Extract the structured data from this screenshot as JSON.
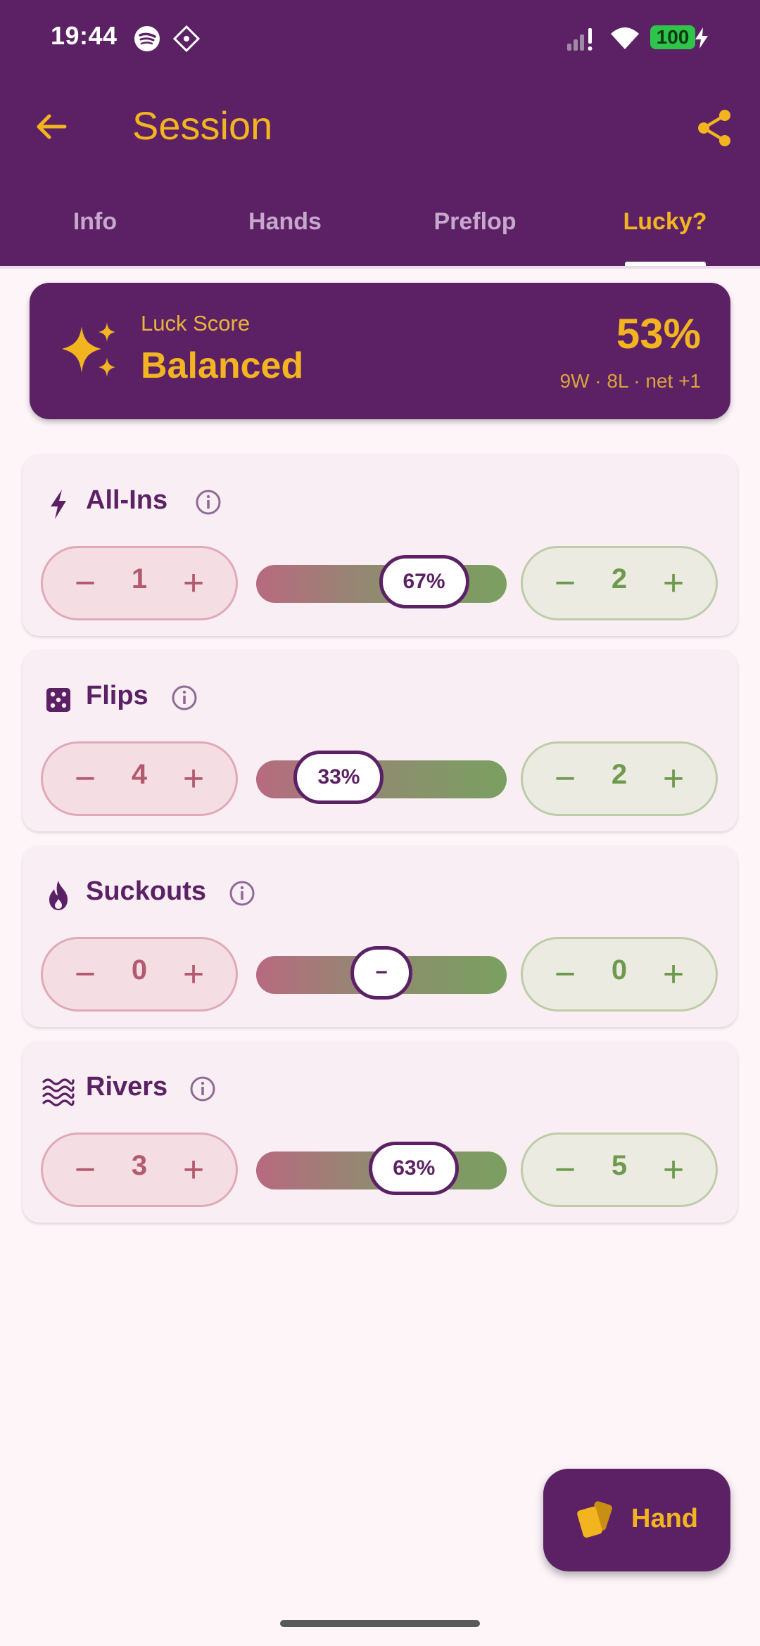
{
  "status_bar": {
    "time": "19:44",
    "battery": "100"
  },
  "header": {
    "title": "Session"
  },
  "tabs": [
    {
      "label": "Info",
      "active": false
    },
    {
      "label": "Hands",
      "active": false
    },
    {
      "label": "Preflop",
      "active": false
    },
    {
      "label": "Lucky?",
      "active": true
    }
  ],
  "luck": {
    "label": "Luck Score",
    "value": "Balanced",
    "percent": "53%",
    "summary": "9W · 8L · net +1"
  },
  "stats": [
    {
      "title": "All-Ins",
      "icon": "lightning-icon",
      "bad": "1",
      "good": "2",
      "ratio_label": "67%",
      "ratio": 0.67
    },
    {
      "title": "Flips",
      "icon": "dice-icon",
      "bad": "4",
      "good": "2",
      "ratio_label": "33%",
      "ratio": 0.33
    },
    {
      "title": "Suckouts",
      "icon": "flame-icon",
      "bad": "0",
      "good": "0",
      "ratio_label": "−",
      "ratio": 0.5
    },
    {
      "title": "Rivers",
      "icon": "waves-icon",
      "bad": "3",
      "good": "5",
      "ratio_label": "63%",
      "ratio": 0.63
    }
  ],
  "stepper_symbols": {
    "minus": "−",
    "plus": "+"
  },
  "fab": {
    "label": "Hand",
    "icon": "cards-icon"
  },
  "colors": {
    "primary": "#5C2165",
    "accent": "#F2B520",
    "bad": "#B35A6E",
    "good": "#6E9A4E"
  }
}
